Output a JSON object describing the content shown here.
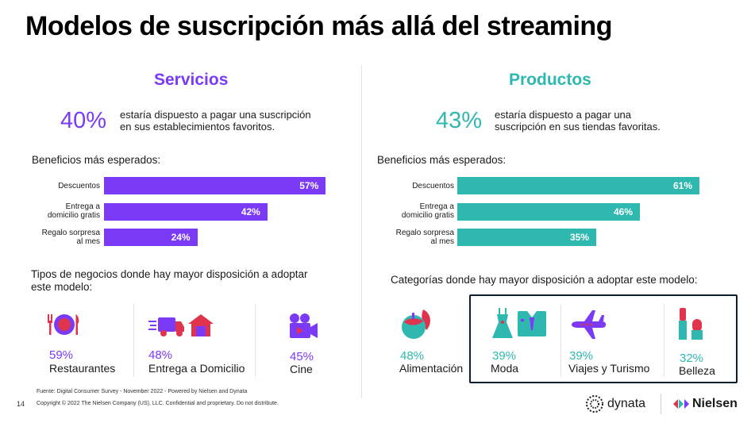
{
  "title": "Modelos de suscripción más allá del streaming",
  "colors": {
    "servicios": "#7b3af5",
    "productos": "#2fb8b0",
    "box_border": "#0b1f33",
    "icon_red": "#e0334d",
    "icon_purple": "#7b3af5"
  },
  "servicios": {
    "heading": "Servicios",
    "big_pct": "40%",
    "pct_text_1": "estaría dispuesto a pagar una suscripción",
    "pct_text_2": "en sus establecimientos favoritos.",
    "beneficios_head": "Beneficios más esperados:",
    "bars": [
      {
        "label_1": "Descuentos",
        "label_2": "",
        "value": 57,
        "text": "57%"
      },
      {
        "label_1": "Entrega a",
        "label_2": "domicilio gratis",
        "value": 42,
        "text": "42%"
      },
      {
        "label_1": "Regalo sorpresa",
        "label_2": "al mes",
        "value": 24,
        "text": "24%"
      }
    ],
    "tipos_1": "Tipos de negocios donde hay mayor disposición a adoptar",
    "tipos_2": "este modelo:",
    "items": [
      {
        "pct": "59%",
        "name": "Restaurantes",
        "icon": "restaurant-icon"
      },
      {
        "pct": "48%",
        "name": "Entrega a Domicilio",
        "icon": "delivery-icon"
      },
      {
        "pct": "45%",
        "name": "Cine",
        "icon": "movie-camera-icon"
      }
    ]
  },
  "productos": {
    "heading": "Productos",
    "big_pct": "43%",
    "pct_text_1": "estaría dispuesto a pagar una",
    "pct_text_2": "suscripción en sus tiendas favoritas.",
    "beneficios_head": "Beneficios más esperados:",
    "bars": [
      {
        "label_1": "Descuentos",
        "label_2": "",
        "value": 61,
        "text": "61%"
      },
      {
        "label_1": "Entrega a",
        "label_2": "domicilio gratis",
        "value": 46,
        "text": "46%"
      },
      {
        "label_1": "Regalo sorpresa",
        "label_2": "al mes",
        "value": 35,
        "text": "35%"
      }
    ],
    "categorias": "Categorías donde hay mayor disposición a adoptar este modelo:",
    "items": [
      {
        "pct": "48%",
        "name": "Alimentación",
        "icon": "food-icon"
      },
      {
        "pct": "39%",
        "name": "Moda",
        "icon": "fashion-icon"
      },
      {
        "pct": "39%",
        "name": "Viajes y Turismo",
        "icon": "airplane-icon"
      },
      {
        "pct": "32%",
        "name": "Belleza",
        "icon": "cosmetics-icon"
      }
    ]
  },
  "footer": {
    "source": "Fuente: Digital Consumer Survey - November 2022 - Powered by Nielsen and Dynata",
    "copyright": "Copyright © 2022 The Nielsen Company (US), LLC. Confidential and proprietary. Do not distribute.",
    "page": "14",
    "logo_dynata": "dynata",
    "logo_nielsen": "Nielsen"
  }
}
